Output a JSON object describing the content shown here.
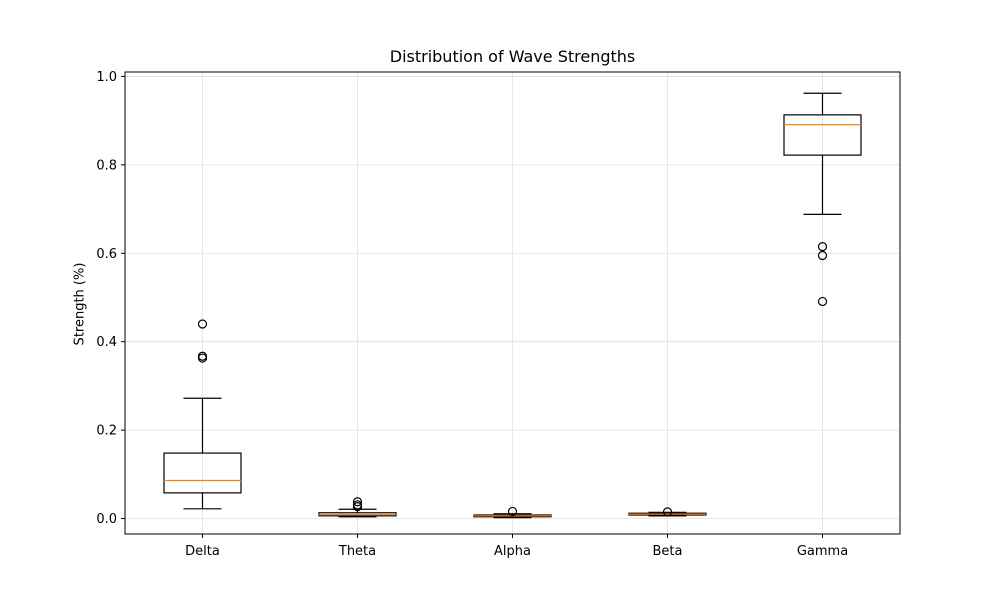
{
  "chart_data": {
    "type": "box",
    "title": "Distribution of Wave Strengths",
    "xlabel": "",
    "ylabel": "Strength (%)",
    "ylim": [
      -0.035,
      1.01
    ],
    "yticks": [
      "0.0",
      "0.2",
      "0.4",
      "0.6",
      "0.8",
      "1.0"
    ],
    "grid": true,
    "colors": {
      "box": "#000000",
      "median": "#ff7f0e",
      "grid": "#e0e0e0"
    },
    "categories": [
      "Delta",
      "Theta",
      "Alpha",
      "Beta",
      "Gamma"
    ],
    "boxes": [
      {
        "category": "Delta",
        "whisker_low": 0.022,
        "q1": 0.058,
        "median": 0.086,
        "q3": 0.148,
        "whisker_high": 0.272,
        "outliers": [
          0.44,
          0.367,
          0.363
        ]
      },
      {
        "category": "Theta",
        "whisker_low": 0.004,
        "q1": 0.006,
        "median": 0.009,
        "q3": 0.013,
        "whisker_high": 0.021,
        "outliers": [
          0.038,
          0.031,
          0.027
        ]
      },
      {
        "category": "Alpha",
        "whisker_low": 0.002,
        "q1": 0.004,
        "median": 0.006,
        "q3": 0.008,
        "whisker_high": 0.011,
        "outliers": [
          0.016
        ]
      },
      {
        "category": "Beta",
        "whisker_low": 0.006,
        "q1": 0.008,
        "median": 0.01,
        "q3": 0.012,
        "whisker_high": 0.014,
        "outliers": [
          0.015
        ]
      },
      {
        "category": "Gamma",
        "whisker_low": 0.688,
        "q1": 0.822,
        "median": 0.891,
        "q3": 0.913,
        "whisker_high": 0.962,
        "outliers": [
          0.615,
          0.595,
          0.491
        ]
      }
    ]
  }
}
